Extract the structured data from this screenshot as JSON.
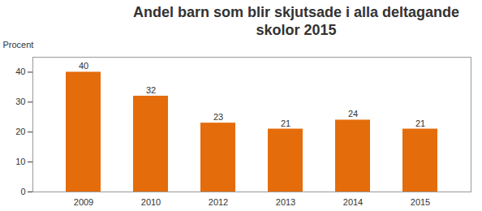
{
  "chart_data": {
    "type": "bar",
    "title": "Andel barn som blir skjutsade i alla deltagande skolor 2015",
    "y_label": "Procent",
    "categories": [
      "2009",
      "2010",
      "2012",
      "2013",
      "2014",
      "2015"
    ],
    "values": [
      40,
      32,
      23,
      21,
      24,
      21
    ],
    "color": "#e46c0a",
    "ylim": [
      0,
      45
    ],
    "yticks": [
      0,
      10,
      20,
      30,
      40
    ],
    "grid": false,
    "data_labels": true
  }
}
